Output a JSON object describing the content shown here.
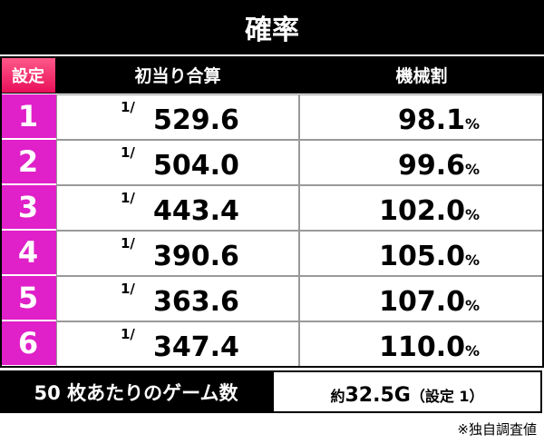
{
  "title": "確率",
  "table": {
    "headers": [
      "設定",
      "初当り合算",
      "機械割"
    ],
    "fraction_prefix": "1/",
    "percent_unit": "%",
    "rows": [
      [
        "1",
        "529.6",
        "98.1"
      ],
      [
        "2",
        "504.0",
        "99.6"
      ],
      [
        "3",
        "443.4",
        "102.0"
      ],
      [
        "4",
        "390.6",
        "105.0"
      ],
      [
        "5",
        "363.6",
        "107.0"
      ],
      [
        "6",
        "347.4",
        "110.0"
      ]
    ]
  },
  "footer": {
    "label": "50 枚あたりのゲーム数",
    "value_prefix": "約",
    "value": "32.5G",
    "value_suffix": "（設定 1）"
  },
  "note": "※独自調査値"
}
